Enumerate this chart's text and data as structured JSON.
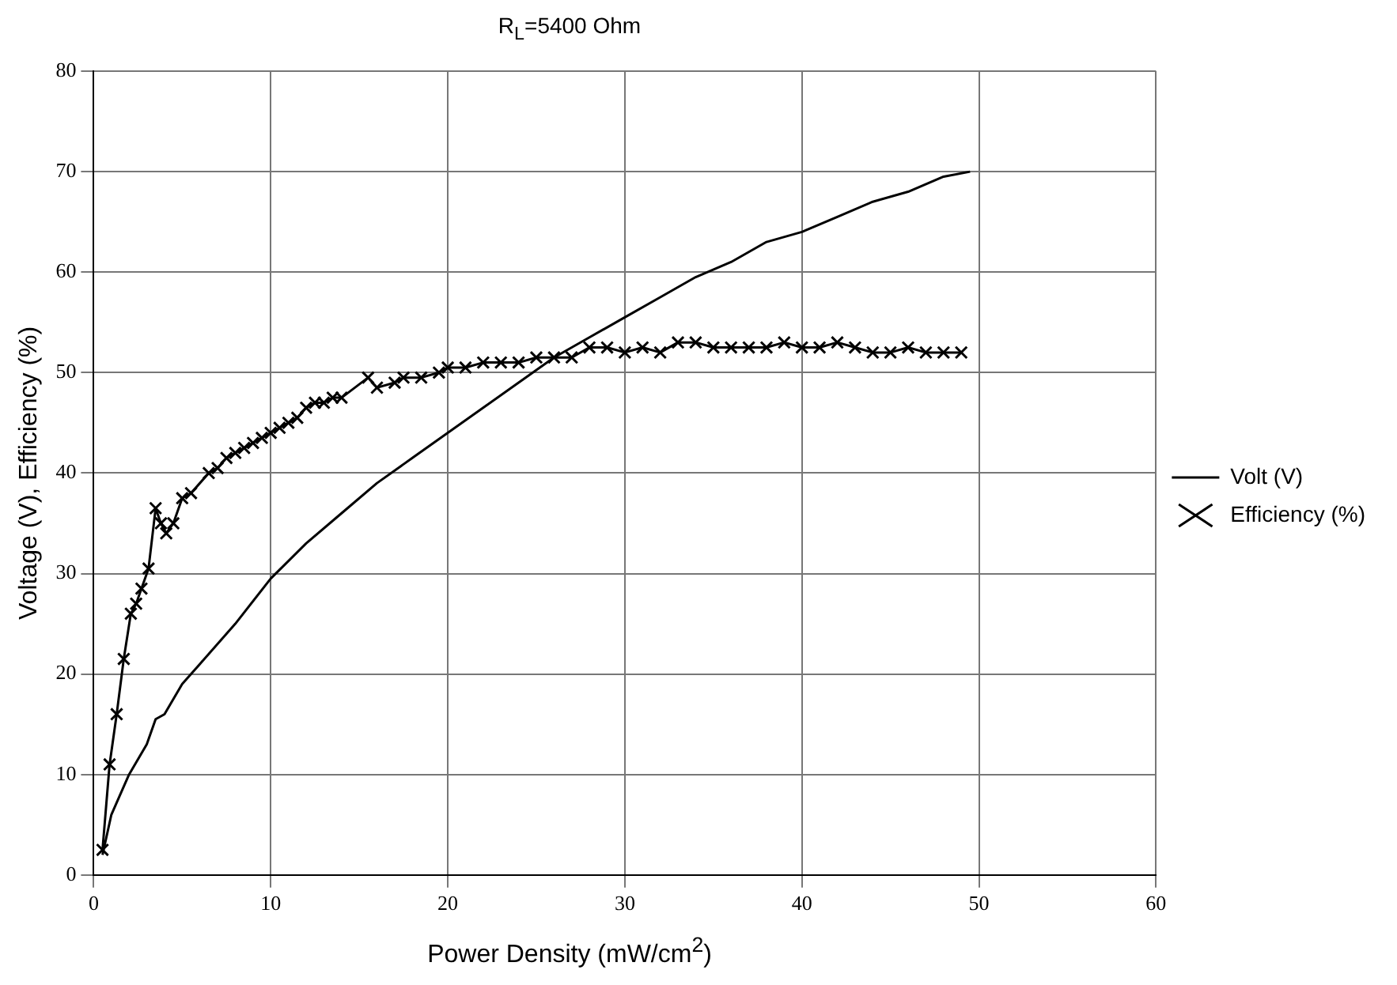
{
  "chart_data": {
    "type": "line",
    "title": "R$_{L}$=5400 Ohm",
    "xlabel": "Power Density (mW/cm$^{2}$)",
    "ylabel": "Voltage (V), Efficiency (%)",
    "xlim": [
      0,
      60
    ],
    "xticks": [
      0,
      10,
      20,
      30,
      40,
      50,
      60
    ],
    "ylim": [
      0,
      80
    ],
    "yticks": [
      0,
      10,
      20,
      30,
      40,
      50,
      60,
      70,
      80
    ],
    "grid": true,
    "legend": "right",
    "series": [
      {
        "name": "Volt (V)",
        "color": "#000000",
        "marker": "none",
        "x": [
          0.5,
          1,
          2,
          3,
          3.5,
          4,
          5,
          6,
          8,
          10,
          12,
          14,
          16,
          18,
          20,
          22,
          24,
          26,
          28,
          30,
          32,
          34,
          36,
          38,
          40,
          42,
          44,
          46,
          48,
          49.5
        ],
        "values": [
          2,
          6,
          10,
          13,
          15.5,
          16,
          19,
          21,
          25,
          29.5,
          33,
          36,
          39,
          41.5,
          44,
          46.5,
          49,
          51.5,
          53.5,
          55.5,
          57.5,
          59.5,
          61,
          63,
          64,
          65.5,
          67,
          68,
          69.5,
          70
        ]
      },
      {
        "name": "Efficiency (%)",
        "color": "#000000",
        "marker": "cross",
        "x": [
          0.5,
          0.9,
          1.3,
          1.7,
          2.1,
          2.4,
          2.7,
          3.1,
          3.5,
          3.8,
          4.1,
          4.5,
          5,
          5.5,
          6.5,
          7,
          7.5,
          8,
          8.5,
          9,
          9.5,
          10,
          10.5,
          11,
          11.5,
          12,
          12.5,
          13,
          13.5,
          14,
          15.5,
          16,
          17,
          17.5,
          18.5,
          19.5,
          20,
          21,
          22,
          23,
          24,
          25,
          26,
          27,
          28,
          29,
          30,
          31,
          32,
          33,
          34,
          35,
          36,
          37,
          38,
          39,
          40,
          41,
          42,
          43,
          44,
          45,
          46,
          47,
          48,
          49
        ],
        "values": [
          2.5,
          11,
          16,
          21.5,
          26,
          27,
          28.5,
          30.5,
          36.5,
          35,
          34,
          35,
          37.5,
          38,
          40,
          40.5,
          41.5,
          42,
          42.5,
          43,
          43.5,
          44,
          44.5,
          45,
          45.5,
          46.5,
          47,
          47,
          47.5,
          47.5,
          49.5,
          48.5,
          49,
          49.5,
          49.5,
          50,
          50.5,
          50.5,
          51,
          51,
          51,
          51.5,
          51.5,
          51.5,
          52.5,
          52.5,
          52,
          52.5,
          52,
          53,
          53,
          52.5,
          52.5,
          52.5,
          52.5,
          53,
          52.5,
          52.5,
          53,
          52.5,
          52,
          52,
          52.5,
          52,
          52,
          52
        ]
      }
    ]
  }
}
